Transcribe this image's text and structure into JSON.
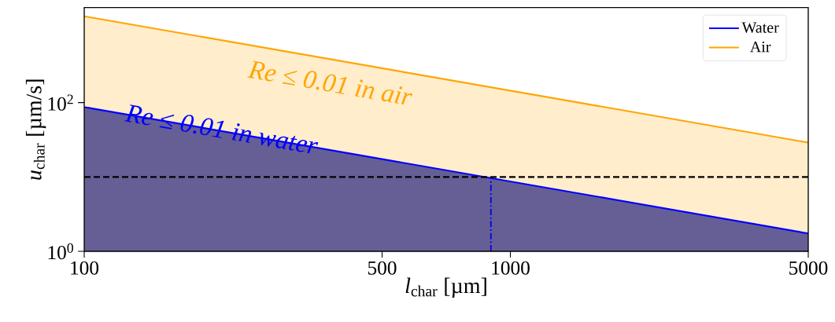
{
  "chart_data": {
    "type": "area",
    "xlabel": "*l*$_{char}$ [µm]",
    "ylabel": "*u*$_{char}$ [µm/s]",
    "log": "xy",
    "xlim": [
      100,
      5000
    ],
    "ylim": [
      1,
      1900
    ],
    "xticks": [
      100,
      500,
      1000,
      5000
    ],
    "yticks": [
      {
        "value": 1,
        "label": "10$^{0}$"
      },
      {
        "value": 100,
        "label": "10$^{2}$"
      }
    ],
    "x": [
      100,
      5000
    ],
    "series": [
      {
        "name": "Air",
        "color": "#ffa500",
        "values": [
          1450,
          29
        ]
      },
      {
        "name": "Water",
        "color": "#0000ff",
        "values": [
          87,
          1.74
        ]
      },
      {
        "type": "line",
        "x": [
          900,
          900
        ],
        "values": [
          1,
          10
        ],
        "color": "#0a0adc",
        "line_style": "dashdot"
      }
    ],
    "ref_lines": [
      {
        "axis": "y",
        "value": 10,
        "color": "#000000",
        "line_style": "dashed"
      }
    ],
    "annotations": [
      "Re ≤ 0.01 in air",
      "Re ≤ 0.01 in water"
    ],
    "legend": "top right",
    "grid": false
  }
}
